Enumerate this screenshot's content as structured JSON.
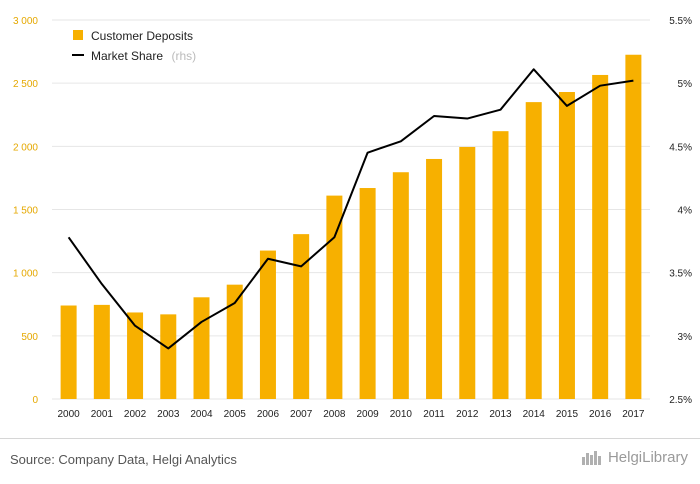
{
  "chart_data": {
    "type": "bar",
    "categories": [
      "2000",
      "2001",
      "2002",
      "2003",
      "2004",
      "2005",
      "2006",
      "2007",
      "2008",
      "2009",
      "2010",
      "2011",
      "2012",
      "2013",
      "2014",
      "2015",
      "2016",
      "2017"
    ],
    "series": [
      {
        "name": "Customer Deposits",
        "type": "bar",
        "axis": "left",
        "color": "#f7b000",
        "values": [
          740,
          745,
          685,
          670,
          805,
          905,
          1175,
          1305,
          1610,
          1670,
          1795,
          1900,
          1995,
          2120,
          2350,
          2430,
          2565,
          2725
        ]
      },
      {
        "name": "Market Share",
        "name_suffix": "(rhs)",
        "type": "line",
        "axis": "right",
        "color": "#000000",
        "values": [
          3.78,
          3.41,
          3.08,
          2.9,
          3.11,
          3.26,
          3.61,
          3.55,
          3.78,
          4.45,
          4.54,
          4.74,
          4.72,
          4.79,
          5.11,
          4.82,
          4.98,
          5.02
        ]
      }
    ],
    "y_left": {
      "min": 0,
      "max": 3000,
      "ticks": [
        0,
        500,
        1000,
        1500,
        2000,
        2500,
        3000
      ],
      "tick_labels": [
        "0",
        "500",
        "1 000",
        "1 500",
        "2 000",
        "2 500",
        "3 000"
      ]
    },
    "y_right": {
      "min": 2.5,
      "max": 5.5,
      "ticks": [
        2.5,
        3,
        3.5,
        4,
        4.5,
        5,
        5.5
      ],
      "tick_labels": [
        "2.5%",
        "3%",
        "3.5%",
        "4%",
        "4.5%",
        "5%",
        "5.5%"
      ]
    },
    "grid": true,
    "legend_position": "top-left"
  },
  "footer": {
    "source": "Source: Company Data, Helgi Analytics",
    "brand": "HelgiLibrary"
  }
}
